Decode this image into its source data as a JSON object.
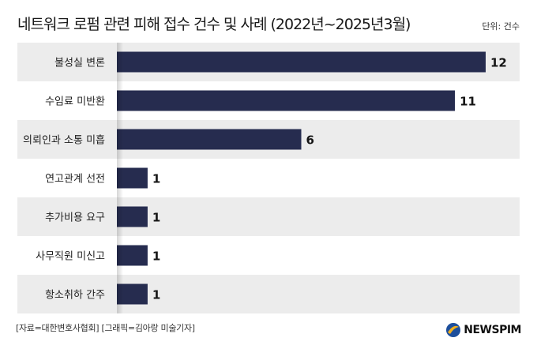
{
  "header": {
    "title": "네트워크 로펌 관련 피해 접수 건수 및 사례 (2022년~2025년3월)",
    "unit": "단위: 건수"
  },
  "footer": {
    "source": "[자료=대한변호사협회] [그래픽=김아랑 미술기자]",
    "logo_text": "NEWSPIM"
  },
  "colors": {
    "bar": "#262c4f",
    "band": "#ececec",
    "text": "#1f1f1f"
  },
  "chart_data": {
    "type": "bar",
    "orientation": "horizontal",
    "title": "네트워크 로펌 관련 피해 접수 건수 및 사례 (2022년~2025년3월)",
    "unit": "단위: 건수",
    "categories": [
      "불성실 변론",
      "수임료 미반환",
      "의뢰인과 소통 미흡",
      "연고관계 선전",
      "추가비용 요구",
      "사무직원 미신고",
      "항소취하 간주"
    ],
    "values": [
      12,
      11,
      6,
      1,
      1,
      1,
      1
    ],
    "xlim": [
      0,
      12
    ],
    "grid": false,
    "legend": "none"
  }
}
